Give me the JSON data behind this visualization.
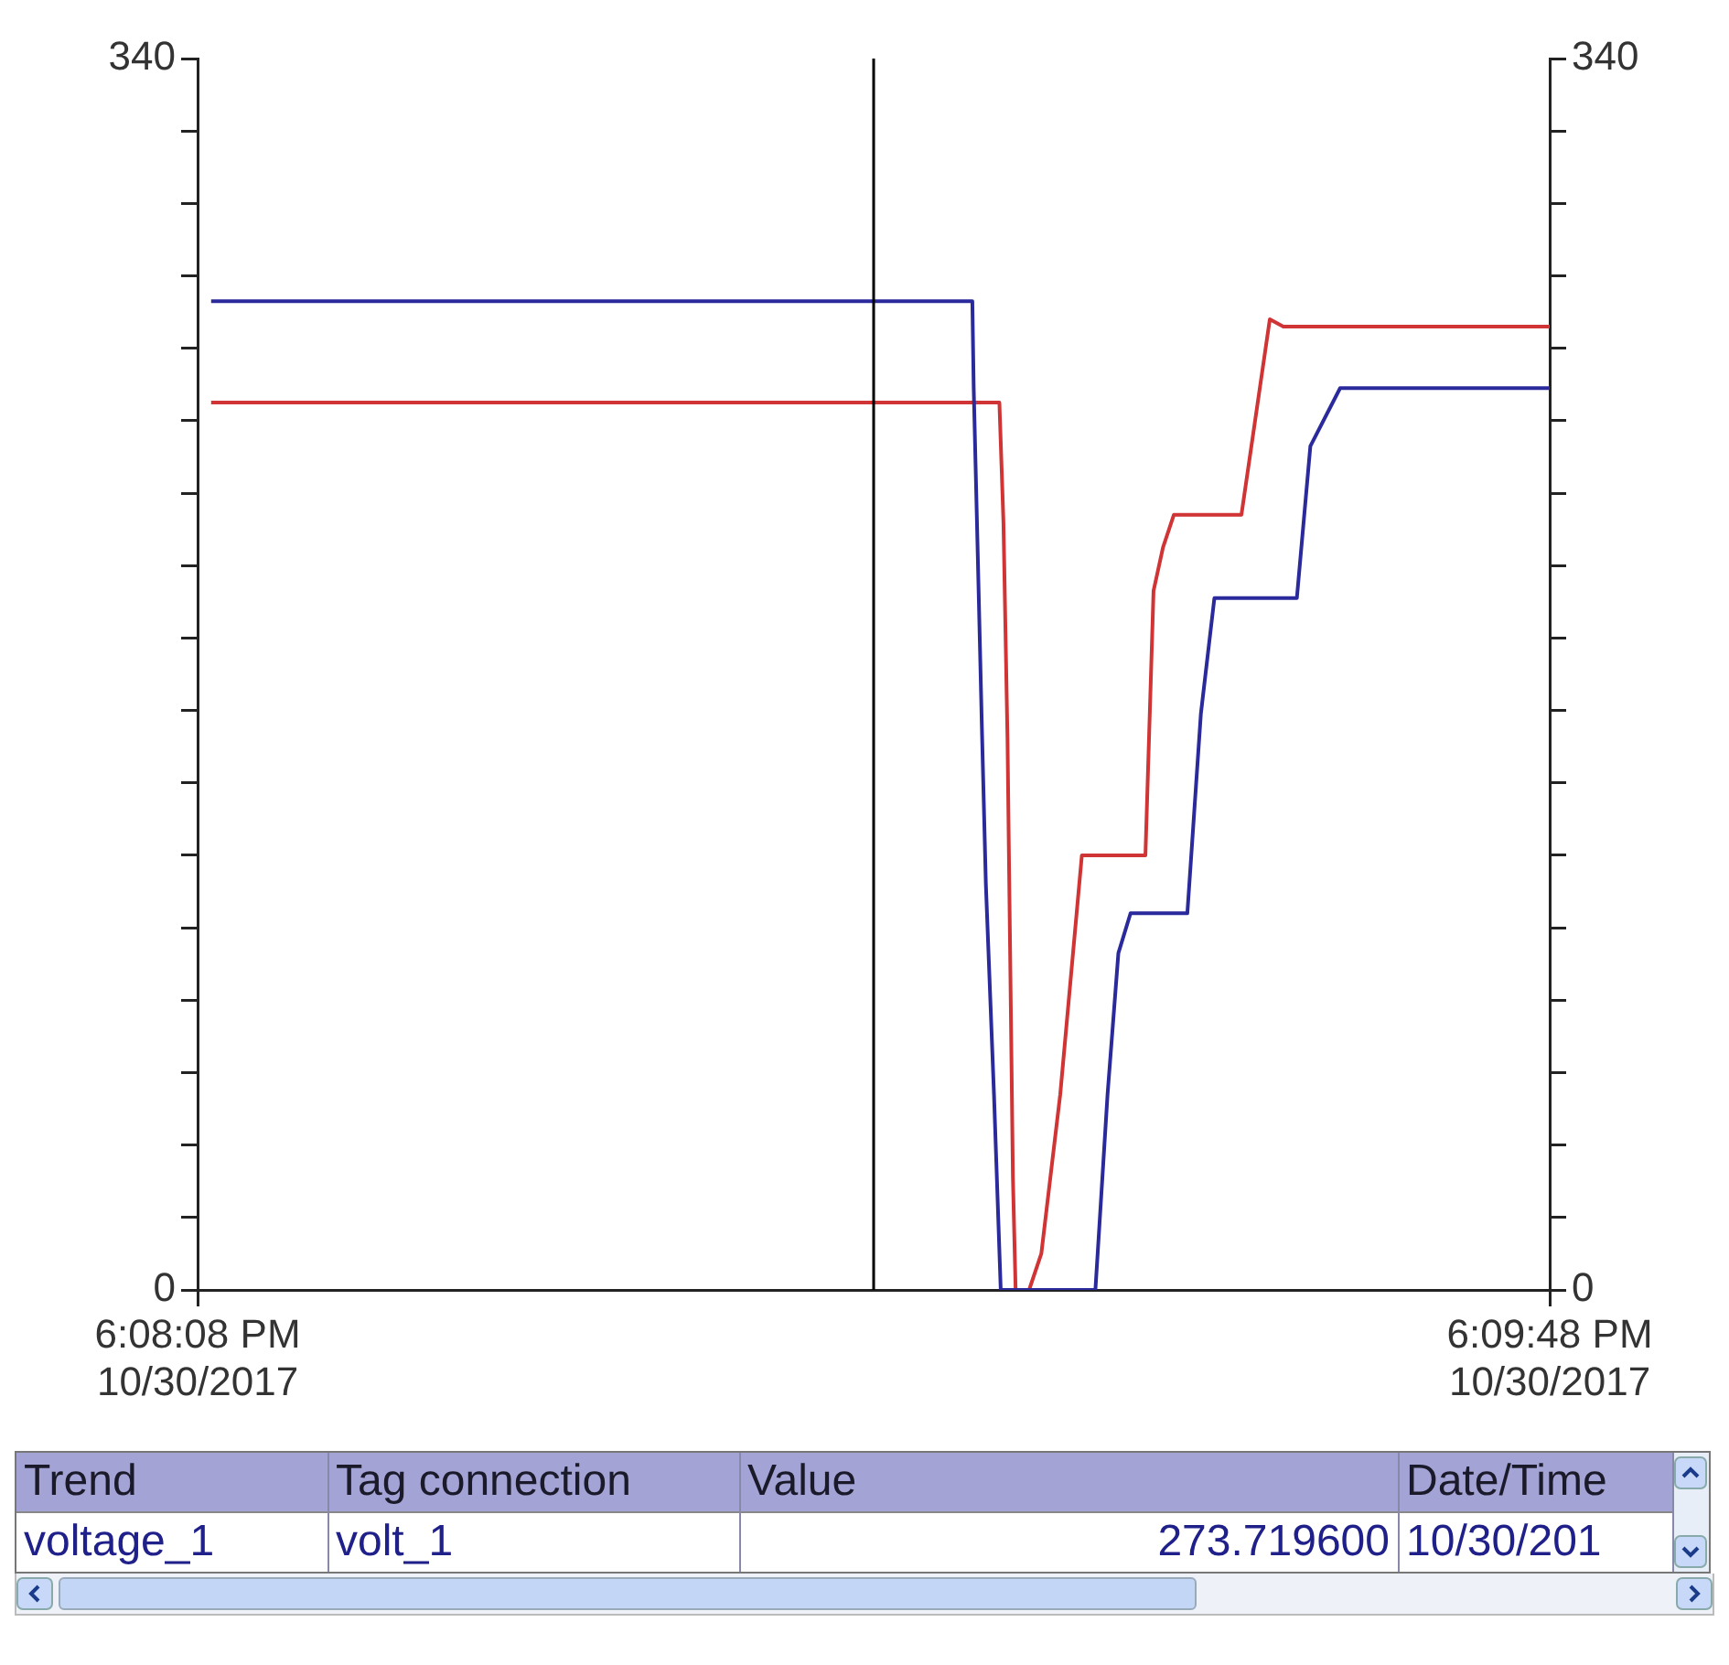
{
  "chart_data": {
    "type": "line",
    "xlim": [
      "2017-10-30T18:08:08",
      "2017-10-30T18:09:48"
    ],
    "xticks": [
      {
        "value": "2017-10-30T18:08:08",
        "label": "6:08:08 PM\n10/30/2017"
      },
      {
        "value": "2017-10-30T18:09:48",
        "label": "6:09:48 PM\n10/30/2017"
      }
    ],
    "ylim": [
      0,
      340
    ],
    "yticks": [
      0,
      {
        "value": 20,
        "label": null
      },
      {
        "value": 40,
        "label": null
      },
      {
        "value": 60,
        "label": null
      },
      {
        "value": 80,
        "label": null
      },
      {
        "value": 100,
        "label": null
      },
      {
        "value": 120,
        "label": null
      },
      {
        "value": 140,
        "label": null
      },
      {
        "value": 160,
        "label": null
      },
      {
        "value": 180,
        "label": null
      },
      {
        "value": 200,
        "label": null
      },
      {
        "value": 220,
        "label": null
      },
      {
        "value": 240,
        "label": null
      },
      {
        "value": 260,
        "label": null
      },
      {
        "value": 280,
        "label": null
      },
      {
        "value": 300,
        "label": null
      },
      {
        "value": 320,
        "label": null
      },
      340
    ],
    "y2lim": [
      0,
      340
    ],
    "y2ticks": [
      0,
      {
        "value": 20,
        "label": null
      },
      {
        "value": 40,
        "label": null
      },
      {
        "value": 60,
        "label": null
      },
      {
        "value": 80,
        "label": null
      },
      {
        "value": 100,
        "label": null
      },
      {
        "value": 120,
        "label": null
      },
      {
        "value": 140,
        "label": null
      },
      {
        "value": 160,
        "label": null
      },
      {
        "value": 180,
        "label": null
      },
      {
        "value": 200,
        "label": null
      },
      {
        "value": 220,
        "label": null
      },
      {
        "value": 240,
        "label": null
      },
      {
        "value": 260,
        "label": null
      },
      {
        "value": 280,
        "label": null
      },
      {
        "value": 300,
        "label": null
      },
      {
        "value": 320,
        "label": null
      },
      340
    ],
    "series": [
      {
        "color": "#2a2a9c",
        "x": [
          "2017-10-30T18:08:09",
          "2017-10-30T18:09:05.3",
          "2017-10-30T18:09:05.4",
          "2017-10-30T18:09:05.7",
          "2017-10-30T18:09:06",
          "2017-10-30T18:09:06.3",
          "2017-10-30T18:09:06.9",
          "2017-10-30T18:09:07.4",
          "2017-10-30T18:09:14.4",
          "2017-10-30T18:09:15.3",
          "2017-10-30T18:09:16.1",
          "2017-10-30T18:09:17",
          "2017-10-30T18:09:21.2",
          "2017-10-30T18:09:22.2",
          "2017-10-30T18:09:23.2",
          "2017-10-30T18:09:29.3",
          "2017-10-30T18:09:30.3",
          "2017-10-30T18:09:32.5",
          "2017-10-30T18:09:48"
        ],
        "values": [
          273,
          273,
          249,
          203,
          156,
          112,
          54,
          0,
          0,
          54,
          93,
          104,
          104,
          159,
          191,
          191,
          233,
          249,
          249
        ]
      },
      {
        "color": "#d03434",
        "x": [
          "2017-10-30T18:08:09",
          "2017-10-30T18:09:07.3",
          "2017-10-30T18:09:07.6",
          "2017-10-30T18:09:07.9",
          "2017-10-30T18:09:08.3",
          "2017-10-30T18:09:08.5",
          "2017-10-30T18:09:09.5",
          "2017-10-30T18:09:10.4",
          "2017-10-30T18:09:11.8",
          "2017-10-30T18:09:13.4",
          "2017-10-30T18:09:18.1",
          "2017-10-30T18:09:18.7",
          "2017-10-30T18:09:19.4",
          "2017-10-30T18:09:20.2",
          "2017-10-30T18:09:25.2",
          "2017-10-30T18:09:27.3",
          "2017-10-30T18:09:28.3",
          "2017-10-30T18:09:48"
        ],
        "values": [
          245,
          245,
          212,
          152,
          31,
          0,
          0,
          10,
          54,
          120,
          120,
          193,
          205,
          214,
          214,
          268,
          266,
          266
        ]
      }
    ],
    "ref_lines": [
      {
        "axis": "x",
        "value": "2017-10-30T18:08:58",
        "color": "#000000"
      }
    ],
    "grid": false,
    "legend": false,
    "marker": "none",
    "line_style": "solid",
    "annotations": [
      "Trend",
      "Tag connection",
      "Value",
      "Date/Time",
      "voltage_1",
      "volt_1",
      "273.719600",
      "10/30/201"
    ]
  }
}
